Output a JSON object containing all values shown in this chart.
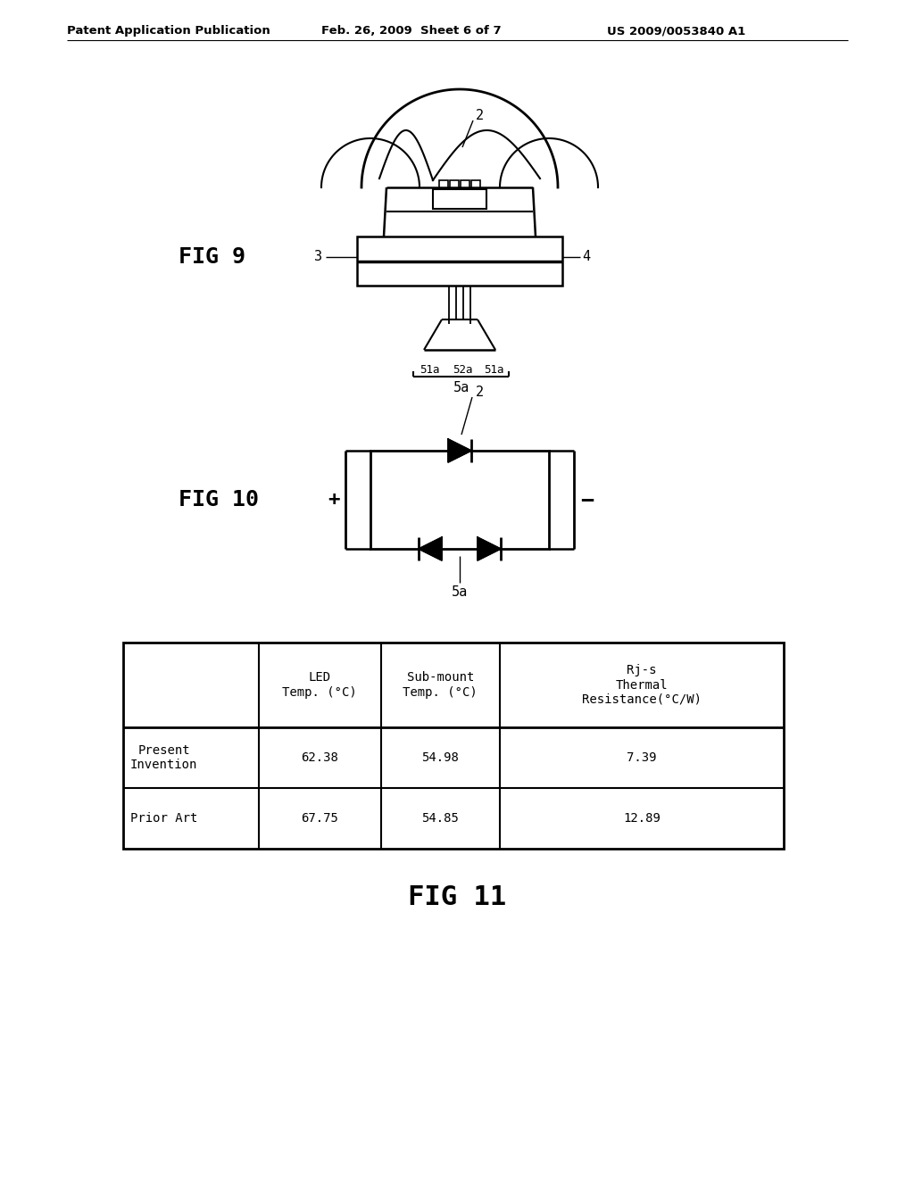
{
  "bg_color": "#ffffff",
  "header_text": "Patent Application Publication",
  "header_date": "Feb. 26, 2009  Sheet 6 of 7",
  "header_patent": "US 2009/0053840 A1",
  "fig9_label": "FIG 9",
  "fig10_label": "FIG 10",
  "fig11_label": "FIG 11",
  "line_color": "#000000",
  "text_color": "#000000"
}
